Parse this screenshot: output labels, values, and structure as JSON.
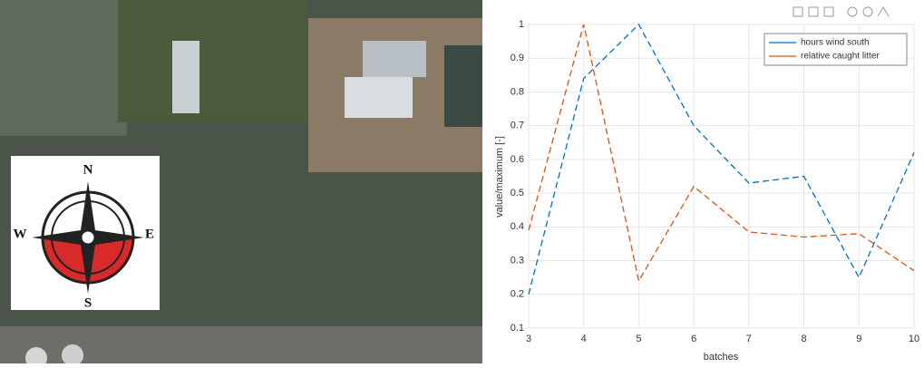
{
  "chart_data": {
    "type": "line",
    "x": [
      3,
      4,
      5,
      6,
      7,
      8,
      9,
      10
    ],
    "series": [
      {
        "name": "hours wind south",
        "color": "#0072bd",
        "values": [
          0.2,
          0.84,
          1.0,
          0.7,
          0.53,
          0.55,
          0.25,
          0.62
        ]
      },
      {
        "name": "relative caught litter",
        "color": "#d95319",
        "values": [
          0.39,
          1.0,
          0.24,
          0.52,
          0.385,
          0.37,
          0.38,
          0.27
        ]
      }
    ],
    "xlabel": "batches",
    "ylabel": "value/maximum [-]",
    "xlim": [
      3,
      10
    ],
    "xticks": [
      3,
      4,
      5,
      6,
      7,
      8,
      9,
      10
    ],
    "ylim": [
      0.1,
      1
    ],
    "yticks": [
      0.1,
      0.2,
      0.3,
      0.4,
      0.5,
      0.6,
      0.7,
      0.8,
      0.9,
      1
    ],
    "grid": true,
    "legend": "upper right",
    "dashed": true
  },
  "compass": {
    "north": "N",
    "east": "E",
    "south": "S",
    "west": "W"
  }
}
